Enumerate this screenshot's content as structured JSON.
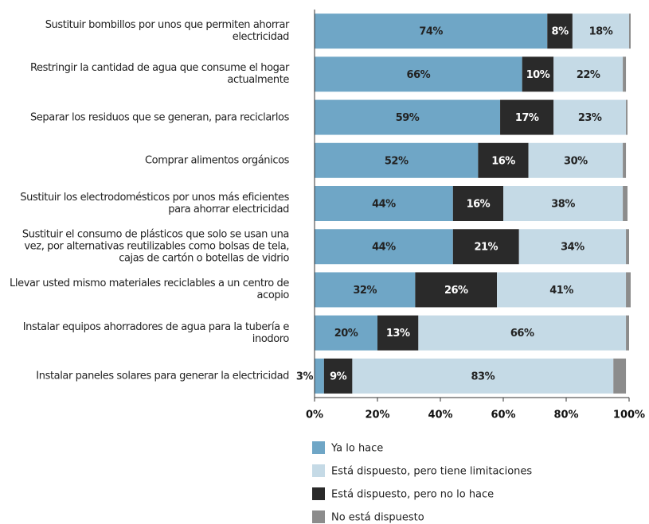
{
  "chart_data": {
    "type": "stacked-barh",
    "categories": [
      "Sustituir  bombillos por unos que  permiten ahorrar electricidad",
      "Restringir la cantidad de  agua que consume el hogar  actualmente",
      "Separar  los residuos que se generan, para reciclarlos",
      "Comprar alimentos orgánicos",
      "Sustituir  los electrodomésticos por  unos más eficientes para  ahorrar electricidad",
      "Sustituir  el consumo de plásticos que  solo se usan una vez, por  alternativas reutilizables  como bolsas de tela, cajas de  cartón o botellas de vidrio",
      "Llevar  usted mismo materiales  reciclables a un centro de  acopio",
      "Instalar  equipos ahorradores de agua  para la tubería e inodoro",
      "Instalar  paneles solares para generar  la electricidad"
    ],
    "series": [
      {
        "name": "Ya lo hace",
        "color": "#6fa6c6",
        "values": [
          74,
          66,
          59,
          52,
          44,
          44,
          32,
          20,
          3
        ],
        "value_labels": [
          "74%",
          "66%",
          "59%",
          "52%",
          "44%",
          "44%",
          "32%",
          "20%",
          "3%"
        ]
      },
      {
        "name": "Está dispuesto, pero tiene  limitaciones",
        "color": "#c5dae6",
        "values": [
          18,
          22,
          23,
          30,
          38,
          34,
          41,
          66,
          83
        ],
        "value_labels": [
          "18%",
          "22%",
          "23%",
          "30%",
          "38%",
          "34%",
          "41%",
          "66%",
          "83%"
        ]
      },
      {
        "name": "Está dispuesto, pero no lo hace",
        "color": "#2a2a2a",
        "values": [
          8,
          10,
          17,
          16,
          16,
          21,
          26,
          13,
          9
        ],
        "value_labels": [
          "8%",
          "10%",
          "17%",
          "16%",
          "16%",
          "21%",
          "26%",
          "13%",
          "9%"
        ]
      },
      {
        "name": "No está dispuesto",
        "color": "#8c8c8c",
        "values": [
          0.5,
          1,
          0.5,
          1,
          1.5,
          1,
          1.5,
          1,
          4
        ]
      }
    ],
    "xlim": [
      0,
      100
    ],
    "xticks": [
      {
        "value": 0,
        "label": "0%"
      },
      {
        "value": 20,
        "label": "20%"
      },
      {
        "value": 40,
        "label": "40%"
      },
      {
        "value": 60,
        "label": "60%"
      },
      {
        "value": 80,
        "label": "80%"
      },
      {
        "value": 100,
        "label": "100%"
      }
    ]
  }
}
